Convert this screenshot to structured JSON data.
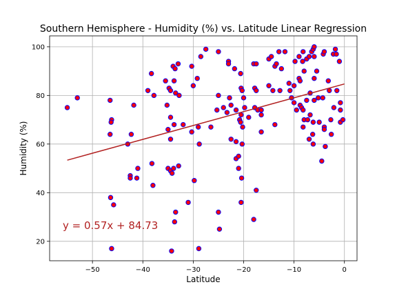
{
  "chart_data": {
    "type": "scatter",
    "title": "Southern Hemisphere - Humidity (%) vs. Latitude Linear Regression",
    "xlabel": "Latitude",
    "ylabel": "Humidity (%)",
    "xlim": [
      -58.5,
      2.5
    ],
    "ylim": [
      12,
      104.5
    ],
    "xticks": [
      -50,
      -40,
      -30,
      -20,
      -10,
      0
    ],
    "yticks": [
      20,
      40,
      60,
      80,
      100
    ],
    "grid": true,
    "marker_face_color": "#ff0000",
    "marker_edge_color": "#0000ff",
    "regression": {
      "slope": 0.57,
      "intercept": 84.73,
      "x_range": [
        -55,
        0
      ],
      "color": "#b22222",
      "label": "y = 0.57x + 84.73"
    },
    "points": [
      [
        -55,
        75
      ],
      [
        -53,
        79
      ],
      [
        -46.5,
        78
      ],
      [
        -46.2,
        70
      ],
      [
        -46.3,
        69
      ],
      [
        -46.5,
        64
      ],
      [
        -46.4,
        38
      ],
      [
        -45.8,
        35
      ],
      [
        -46.2,
        17
      ],
      [
        -43,
        60
      ],
      [
        -42.5,
        47
      ],
      [
        -42.5,
        46
      ],
      [
        -42.3,
        64
      ],
      [
        -41.8,
        76
      ],
      [
        -41.2,
        46
      ],
      [
        -41,
        50
      ],
      [
        -39,
        82
      ],
      [
        -38.3,
        89
      ],
      [
        -38.2,
        52
      ],
      [
        -38,
        43
      ],
      [
        -37.8,
        80
      ],
      [
        -35.5,
        86
      ],
      [
        -35.2,
        76
      ],
      [
        -35,
        66
      ],
      [
        -35,
        50
      ],
      [
        -34.8,
        83
      ],
      [
        -34.5,
        82
      ],
      [
        -34.5,
        71
      ],
      [
        -34.5,
        62
      ],
      [
        -34.5,
        49
      ],
      [
        -34.2,
        48
      ],
      [
        -34.3,
        16
      ],
      [
        -34,
        92
      ],
      [
        -33.8,
        86
      ],
      [
        -33.6,
        91
      ],
      [
        -33.5,
        81
      ],
      [
        -33.8,
        68
      ],
      [
        -33.9,
        50
      ],
      [
        -33.5,
        32
      ],
      [
        -33.7,
        28
      ],
      [
        -33,
        93
      ],
      [
        -32.8,
        80
      ],
      [
        -32.9,
        51
      ],
      [
        -32,
        68
      ],
      [
        -31,
        36
      ],
      [
        -30.3,
        92
      ],
      [
        -30,
        84
      ],
      [
        -30.3,
        65
      ],
      [
        -29.8,
        45
      ],
      [
        -29.2,
        87
      ],
      [
        -29,
        67
      ],
      [
        -28.8,
        60
      ],
      [
        -28.9,
        17
      ],
      [
        -28.5,
        96
      ],
      [
        -27.5,
        99
      ],
      [
        -26.5,
        67
      ],
      [
        -25.3,
        74
      ],
      [
        -25,
        98
      ],
      [
        -25,
        80
      ],
      [
        -25,
        32
      ],
      [
        -24.8,
        25
      ],
      [
        -24,
        75
      ],
      [
        -23.3,
        73
      ],
      [
        -23,
        94
      ],
      [
        -23,
        93
      ],
      [
        -22.8,
        79
      ],
      [
        -22.5,
        76
      ],
      [
        -22.5,
        62
      ],
      [
        -21.8,
        91
      ],
      [
        -21.5,
        74
      ],
      [
        -21.5,
        61
      ],
      [
        -21.5,
        54
      ],
      [
        -21,
        55
      ],
      [
        -21,
        50
      ],
      [
        -20.6,
        89
      ],
      [
        -20.5,
        83
      ],
      [
        -20.3,
        82
      ],
      [
        -20.5,
        72
      ],
      [
        -20.8,
        70
      ],
      [
        -20.6,
        69
      ],
      [
        -20.2,
        67
      ],
      [
        -20.3,
        60
      ],
      [
        -20.4,
        46
      ],
      [
        -20.5,
        36
      ],
      [
        -20,
        79
      ],
      [
        -19.8,
        75
      ],
      [
        -19,
        71
      ],
      [
        -18,
        93
      ],
      [
        -17.5,
        93
      ],
      [
        -17.8,
        83
      ],
      [
        -17.5,
        82
      ],
      [
        -17.8,
        75
      ],
      [
        -17.2,
        74
      ],
      [
        -18,
        29
      ],
      [
        -17.5,
        41
      ],
      [
        -16.5,
        74
      ],
      [
        -16.5,
        72
      ],
      [
        -16.5,
        65
      ],
      [
        -15,
        84
      ],
      [
        -15,
        95
      ],
      [
        -14.5,
        96
      ],
      [
        -14.2,
        82
      ],
      [
        -13.8,
        92
      ],
      [
        -13.5,
        93
      ],
      [
        -13.8,
        68
      ],
      [
        -13,
        98
      ],
      [
        -12.8,
        82
      ],
      [
        -12.5,
        91
      ],
      [
        -11.8,
        98
      ],
      [
        -11,
        85
      ],
      [
        -10.8,
        82
      ],
      [
        -10.5,
        79
      ],
      [
        -10,
        84
      ],
      [
        -10,
        77
      ],
      [
        -9.8,
        94
      ],
      [
        -9.5,
        74
      ],
      [
        -9,
        96
      ],
      [
        -9,
        87
      ],
      [
        -8.8,
        86
      ],
      [
        -8.8,
        76
      ],
      [
        -8.5,
        75
      ],
      [
        -8.3,
        94
      ],
      [
        -8.2,
        98
      ],
      [
        -8,
        90
      ],
      [
        -8.2,
        74
      ],
      [
        -8,
        70
      ],
      [
        -8.2,
        67
      ],
      [
        -7.5,
        95
      ],
      [
        -7.5,
        78
      ],
      [
        -7.3,
        70
      ],
      [
        -7,
        96
      ],
      [
        -7,
        62
      ],
      [
        -6.8,
        81
      ],
      [
        -6.5,
        98
      ],
      [
        -6.8,
        72
      ],
      [
        -6.2,
        99
      ],
      [
        -6,
        100
      ],
      [
        -6,
        96
      ],
      [
        -6,
        87
      ],
      [
        -6,
        78
      ],
      [
        -6.2,
        69
      ],
      [
        -6.3,
        64
      ],
      [
        -6.2,
        60
      ],
      [
        -5.5,
        90
      ],
      [
        -5.2,
        79
      ],
      [
        -5,
        69
      ],
      [
        -4.5,
        53
      ],
      [
        -4.3,
        79
      ],
      [
        -4.2,
        97
      ],
      [
        -4,
        98
      ],
      [
        -4,
        67
      ],
      [
        -4,
        66
      ],
      [
        -3.8,
        59
      ],
      [
        -3.2,
        86
      ],
      [
        -3,
        82
      ],
      [
        -2.7,
        70
      ],
      [
        -2.6,
        64
      ],
      [
        -2.2,
        97
      ],
      [
        -2.1,
        75
      ],
      [
        -1.8,
        99
      ],
      [
        -1.6,
        97
      ],
      [
        -1.5,
        82
      ],
      [
        -1,
        94
      ],
      [
        -0.8,
        77
      ],
      [
        -0.8,
        74
      ],
      [
        -0.8,
        69
      ],
      [
        -0.3,
        70
      ]
    ]
  }
}
